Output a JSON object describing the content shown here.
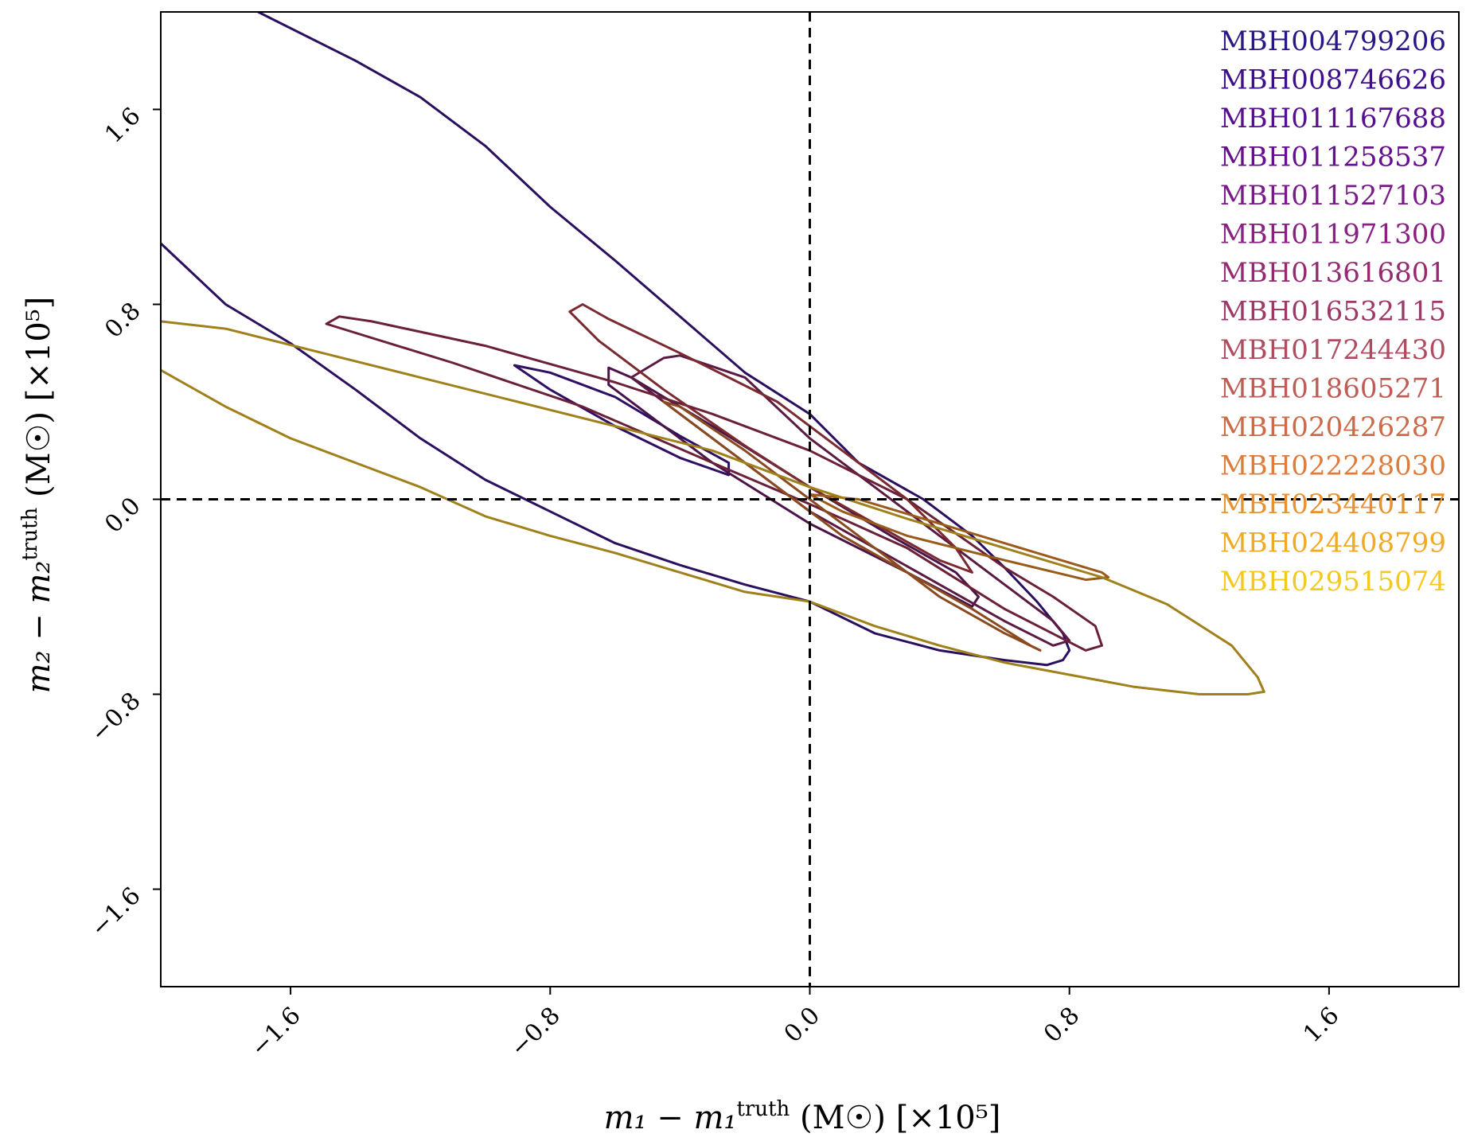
{
  "chart_data": {
    "type": "line",
    "x_label": {
      "main": "m₁ − m₁",
      "sup": "truth",
      "unit": " (M☉) [×10⁵]"
    },
    "y_label": {
      "main": "m₂ − m₂",
      "sup": "truth",
      "unit": " (M☉) [×10⁵]"
    },
    "xlim": [
      -2.0,
      2.0
    ],
    "ylim": [
      -2.0,
      2.0
    ],
    "xticks": [
      -1.6,
      -0.8,
      0.0,
      0.8,
      1.6
    ],
    "yticks": [
      -1.6,
      -0.8,
      0.0,
      0.8,
      1.6
    ],
    "xtick_labels": [
      "−1.6",
      "−0.8",
      "0.0",
      "0.8",
      "1.6"
    ],
    "ytick_labels": [
      "−1.6",
      "−0.8",
      "0.0",
      "0.8",
      "1.6"
    ],
    "reference_lines": {
      "x": 0.0,
      "y": 0.0,
      "style": "dashed"
    },
    "legend_position": "top-right",
    "legend": [
      {
        "name": "MBH004799206",
        "color": "#2a1785"
      },
      {
        "name": "MBH008746626",
        "color": "#3d0f8a"
      },
      {
        "name": "MBH011167688",
        "color": "#560f8f"
      },
      {
        "name": "MBH011258537",
        "color": "#66108f"
      },
      {
        "name": "MBH011527103",
        "color": "#7a1a8a"
      },
      {
        "name": "MBH011971300",
        "color": "#8a2182"
      },
      {
        "name": "MBH013616801",
        "color": "#962a72"
      },
      {
        "name": "MBH016532115",
        "color": "#9e3866"
      },
      {
        "name": "MBH017244430",
        "color": "#b04b60"
      },
      {
        "name": "MBH018605271",
        "color": "#bf5c56"
      },
      {
        "name": "MBH020426287",
        "color": "#cd6a48"
      },
      {
        "name": "MBH022228030",
        "color": "#de7c3c"
      },
      {
        "name": "MBH023440117",
        "color": "#e8922f"
      },
      {
        "name": "MBH024408799",
        "color": "#f0aa26"
      },
      {
        "name": "MBH029515074",
        "color": "#f5c81e"
      }
    ],
    "contours": [
      {
        "color": "#2a0f5e",
        "closed": false,
        "points": [
          [
            -1.7,
            2.0
          ],
          [
            -1.4,
            1.8
          ],
          [
            -1.2,
            1.65
          ],
          [
            -1.0,
            1.45
          ],
          [
            -0.8,
            1.2
          ],
          [
            -0.6,
            0.98
          ],
          [
            -0.4,
            0.75
          ],
          [
            -0.2,
            0.52
          ],
          [
            0.0,
            0.35
          ],
          [
            0.15,
            0.15
          ],
          [
            0.35,
            0.0
          ],
          [
            0.5,
            -0.15
          ],
          [
            0.6,
            -0.28
          ],
          [
            0.7,
            -0.42
          ],
          [
            0.78,
            -0.55
          ],
          [
            0.8,
            -0.62
          ],
          [
            0.78,
            -0.66
          ],
          [
            0.73,
            -0.68
          ],
          [
            0.6,
            -0.66
          ],
          [
            0.4,
            -0.62
          ],
          [
            0.2,
            -0.55
          ],
          [
            0.0,
            -0.42
          ],
          [
            -0.2,
            -0.35
          ],
          [
            -0.4,
            -0.27
          ],
          [
            -0.6,
            -0.18
          ],
          [
            -0.8,
            -0.05
          ],
          [
            -1.0,
            0.08
          ],
          [
            -1.2,
            0.25
          ],
          [
            -1.4,
            0.45
          ],
          [
            -1.6,
            0.64
          ],
          [
            -1.8,
            0.8
          ],
          [
            -2.0,
            1.05
          ]
        ]
      },
      {
        "color": "#2e0f63",
        "closed": true,
        "points": [
          [
            -0.91,
            0.55
          ],
          [
            -0.8,
            0.52
          ],
          [
            -0.6,
            0.42
          ],
          [
            -0.4,
            0.26
          ],
          [
            -0.25,
            0.15
          ],
          [
            -0.25,
            0.1
          ],
          [
            -0.4,
            0.17
          ],
          [
            -0.6,
            0.3
          ],
          [
            -0.8,
            0.45
          ],
          [
            -0.91,
            0.55
          ]
        ]
      },
      {
        "color": "#4a1448",
        "closed": true,
        "points": [
          [
            -0.62,
            0.54
          ],
          [
            -0.55,
            0.5
          ],
          [
            -0.3,
            0.3
          ],
          [
            0.0,
            0.05
          ],
          [
            0.25,
            -0.15
          ],
          [
            0.45,
            -0.3
          ],
          [
            0.52,
            -0.4
          ],
          [
            0.5,
            -0.44
          ],
          [
            0.3,
            -0.3
          ],
          [
            0.0,
            -0.1
          ],
          [
            -0.3,
            0.15
          ],
          [
            -0.5,
            0.35
          ],
          [
            -0.62,
            0.47
          ],
          [
            -0.62,
            0.54
          ]
        ]
      },
      {
        "color": "#5a1a42",
        "closed": true,
        "points": [
          [
            -0.55,
            0.5
          ],
          [
            -0.45,
            0.58
          ],
          [
            -0.4,
            0.59
          ],
          [
            -0.2,
            0.5
          ],
          [
            0.0,
            0.25
          ],
          [
            0.2,
            0.05
          ],
          [
            0.4,
            -0.15
          ],
          [
            0.6,
            -0.35
          ],
          [
            0.75,
            -0.5
          ],
          [
            0.8,
            -0.58
          ],
          [
            0.75,
            -0.6
          ],
          [
            0.6,
            -0.5
          ],
          [
            0.4,
            -0.35
          ],
          [
            0.2,
            -0.2
          ],
          [
            0.0,
            -0.05
          ],
          [
            -0.2,
            0.15
          ],
          [
            -0.4,
            0.35
          ],
          [
            -0.55,
            0.5
          ]
        ]
      },
      {
        "color": "#6a2038",
        "closed": true,
        "points": [
          [
            -1.49,
            0.72
          ],
          [
            -1.45,
            0.75
          ],
          [
            -1.35,
            0.73
          ],
          [
            -1.0,
            0.63
          ],
          [
            -0.6,
            0.48
          ],
          [
            -0.3,
            0.35
          ],
          [
            0.0,
            0.2
          ],
          [
            0.3,
            0.0
          ],
          [
            0.6,
            -0.28
          ],
          [
            0.75,
            -0.4
          ],
          [
            0.88,
            -0.52
          ],
          [
            0.9,
            -0.6
          ],
          [
            0.85,
            -0.62
          ],
          [
            0.6,
            -0.45
          ],
          [
            0.3,
            -0.2
          ],
          [
            0.0,
            -0.02
          ],
          [
            -0.3,
            0.15
          ],
          [
            -0.7,
            0.38
          ],
          [
            -1.1,
            0.56
          ],
          [
            -1.49,
            0.72
          ]
        ]
      },
      {
        "color": "#7a2a30",
        "closed": true,
        "points": [
          [
            -0.74,
            0.77
          ],
          [
            -0.7,
            0.8
          ],
          [
            -0.62,
            0.74
          ],
          [
            -0.4,
            0.6
          ],
          [
            -0.1,
            0.4
          ],
          [
            0.1,
            0.2
          ],
          [
            0.3,
            0.0
          ],
          [
            0.45,
            -0.2
          ],
          [
            0.5,
            -0.3
          ],
          [
            0.4,
            -0.25
          ],
          [
            0.2,
            -0.1
          ],
          [
            0.0,
            0.05
          ],
          [
            -0.2,
            0.22
          ],
          [
            -0.45,
            0.45
          ],
          [
            -0.65,
            0.65
          ],
          [
            -0.74,
            0.77
          ]
        ]
      },
      {
        "color": "#8a4a20",
        "closed": true,
        "points": [
          [
            -0.45,
            0.4
          ],
          [
            -0.4,
            0.38
          ],
          [
            -0.2,
            0.2
          ],
          [
            0.0,
            0.0
          ],
          [
            0.2,
            -0.2
          ],
          [
            0.4,
            -0.4
          ],
          [
            0.6,
            -0.55
          ],
          [
            0.71,
            -0.62
          ],
          [
            0.68,
            -0.6
          ],
          [
            0.5,
            -0.45
          ],
          [
            0.3,
            -0.3
          ],
          [
            0.1,
            -0.15
          ],
          [
            -0.1,
            0.05
          ],
          [
            -0.3,
            0.25
          ],
          [
            -0.45,
            0.4
          ]
        ]
      },
      {
        "color": "#9a5a1a",
        "closed": true,
        "points": [
          [
            0.0,
            0.02
          ],
          [
            0.15,
            0.0
          ],
          [
            0.4,
            -0.1
          ],
          [
            0.7,
            -0.22
          ],
          [
            0.9,
            -0.3
          ],
          [
            0.92,
            -0.32
          ],
          [
            0.85,
            -0.33
          ],
          [
            0.6,
            -0.25
          ],
          [
            0.3,
            -0.15
          ],
          [
            0.1,
            -0.05
          ],
          [
            0.0,
            0.02
          ]
        ]
      },
      {
        "color": "#a0801a",
        "closed": false,
        "points": [
          [
            -2.0,
            0.73
          ],
          [
            -1.8,
            0.7
          ],
          [
            -1.5,
            0.6
          ],
          [
            -1.2,
            0.5
          ],
          [
            -0.9,
            0.4
          ],
          [
            -0.6,
            0.3
          ],
          [
            -0.3,
            0.2
          ],
          [
            0.0,
            0.05
          ],
          [
            0.3,
            -0.08
          ],
          [
            0.6,
            -0.2
          ],
          [
            0.9,
            -0.32
          ],
          [
            1.1,
            -0.43
          ],
          [
            1.3,
            -0.6
          ],
          [
            1.38,
            -0.73
          ],
          [
            1.4,
            -0.79
          ],
          [
            1.35,
            -0.8
          ],
          [
            1.2,
            -0.8
          ],
          [
            1.0,
            -0.77
          ],
          [
            0.8,
            -0.72
          ],
          [
            0.6,
            -0.67
          ],
          [
            0.4,
            -0.6
          ],
          [
            0.2,
            -0.52
          ],
          [
            0.0,
            -0.42
          ],
          [
            -0.2,
            -0.38
          ],
          [
            -0.4,
            -0.3
          ],
          [
            -0.6,
            -0.22
          ],
          [
            -0.8,
            -0.15
          ],
          [
            -1.0,
            -0.07
          ],
          [
            -1.2,
            0.05
          ],
          [
            -1.4,
            0.15
          ],
          [
            -1.6,
            0.25
          ],
          [
            -1.8,
            0.38
          ],
          [
            -2.0,
            0.53
          ]
        ]
      }
    ]
  }
}
